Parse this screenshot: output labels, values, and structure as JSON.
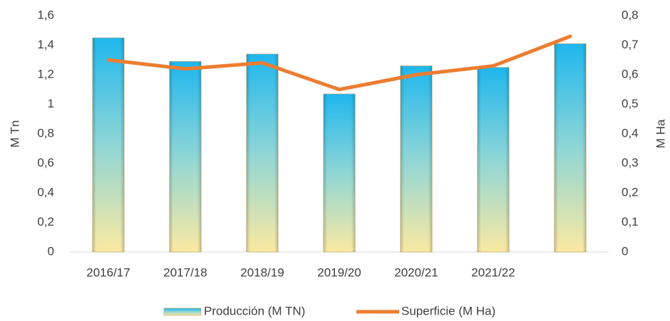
{
  "chart_data": {
    "type": "bar",
    "categories": [
      "2016/17",
      "2017/18",
      "2018/19",
      "2019/20",
      "2020/21",
      "2021/22",
      null
    ],
    "series": [
      {
        "name": "Producción (M TN)",
        "color": "#1fb7ee",
        "type": "bar",
        "values": [
          1.45,
          1.29,
          1.34,
          1.07,
          1.26,
          1.25,
          1.41
        ]
      },
      {
        "name": "Superficie (M Ha)",
        "color": "#ed7d31",
        "type": "line",
        "axis": "y2",
        "values": [
          0.65,
          0.62,
          0.64,
          0.55,
          0.6,
          0.63,
          0.73
        ]
      }
    ],
    "ylabel": "M Tn",
    "y2label": "M Ha",
    "ylim": [
      0,
      1.6
    ],
    "yticks": [
      0,
      {
        "value": 0.2,
        "label": "0,2"
      },
      {
        "value": 0.4,
        "label": "0,4"
      },
      {
        "value": 0.6,
        "label": "0,6"
      },
      {
        "value": 0.8,
        "label": "0,8"
      },
      1,
      {
        "value": 1.2,
        "label": "1,2"
      },
      {
        "value": 1.4,
        "label": "1,4"
      },
      {
        "value": 1.6,
        "label": "1,6"
      }
    ],
    "y2lim": [
      0,
      0.8
    ],
    "y2ticks": [
      0,
      {
        "value": 0.1,
        "label": "0,1"
      },
      {
        "value": 0.2,
        "label": "0,2"
      },
      {
        "value": 0.3,
        "label": "0,3"
      },
      {
        "value": 0.4,
        "label": "0,4"
      },
      {
        "value": 0.5,
        "label": "0,5"
      },
      {
        "value": 0.6,
        "label": "0,6"
      },
      {
        "value": 0.7,
        "label": "0,7"
      },
      {
        "value": 0.8,
        "label": "0,8"
      }
    ],
    "grid": false,
    "legend": "bottom"
  }
}
